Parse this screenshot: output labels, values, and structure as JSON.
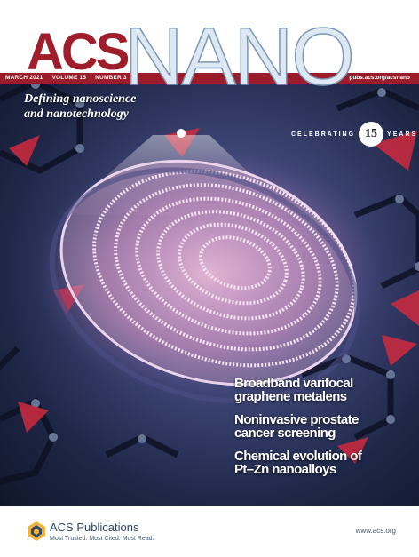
{
  "masthead": {
    "acs": "ACS",
    "nano": "NANO",
    "issue_date": "MARCH 2021",
    "volume": "VOLUME 15",
    "number": "NUMBER 3",
    "url": "pubs.acs.org/acsnano"
  },
  "tagline": {
    "line1": "Defining nanoscience",
    "line2": "and nanotechnology"
  },
  "anniversary": {
    "word1": "CELEBRATING",
    "number": "15",
    "word2": "YEARS"
  },
  "headlines": [
    "Broadband varifocal\ngraphene metalens",
    "Noninvasive prostate\ncancer screening",
    "Chemical evolution of\nPt–Zn nanoalloys"
  ],
  "footer": {
    "publisher": "ACS Publications",
    "slogan": "Most Trusted. Most Cited. Most Read.",
    "url": "www.acs.org"
  },
  "colors": {
    "acs_red": "#a01d2c",
    "bar_red": "#9b1c2a",
    "nano_fill": "#dde8f3",
    "publisher_blue": "#2f4a66"
  }
}
